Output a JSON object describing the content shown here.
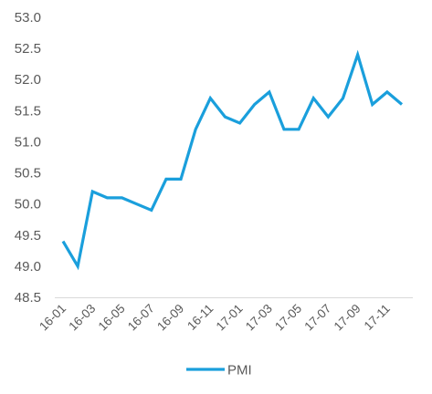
{
  "chart_data": {
    "type": "line",
    "title": "",
    "xlabel": "",
    "ylabel": "",
    "ylim": [
      48.5,
      53.0
    ],
    "y_ticks": [
      "53.0",
      "52.5",
      "52.0",
      "51.5",
      "51.0",
      "50.5",
      "50.0",
      "49.5",
      "49.0",
      "48.5"
    ],
    "x_tick_labels": [
      "16-01",
      "16-03",
      "16-05",
      "16-07",
      "16-09",
      "16-11",
      "17-01",
      "17-03",
      "17-05",
      "17-07",
      "17-09",
      "17-11"
    ],
    "x": [
      "16-01",
      "16-02",
      "16-03",
      "16-04",
      "16-05",
      "16-06",
      "16-07",
      "16-08",
      "16-09",
      "16-10",
      "16-11",
      "16-12",
      "17-01",
      "17-02",
      "17-03",
      "17-04",
      "17-05",
      "17-06",
      "17-07",
      "17-08",
      "17-09",
      "17-10",
      "17-11",
      "17-12"
    ],
    "series": [
      {
        "name": "PMI",
        "color": "#1a9fdc",
        "values": [
          49.4,
          49.0,
          50.2,
          50.1,
          50.1,
          50.0,
          49.9,
          50.4,
          50.4,
          51.2,
          51.7,
          51.4,
          51.3,
          51.6,
          51.8,
          51.2,
          51.2,
          51.7,
          51.4,
          51.7,
          52.4,
          51.6,
          51.8,
          51.6
        ]
      }
    ],
    "grid": false,
    "legend": "bottom-center"
  }
}
